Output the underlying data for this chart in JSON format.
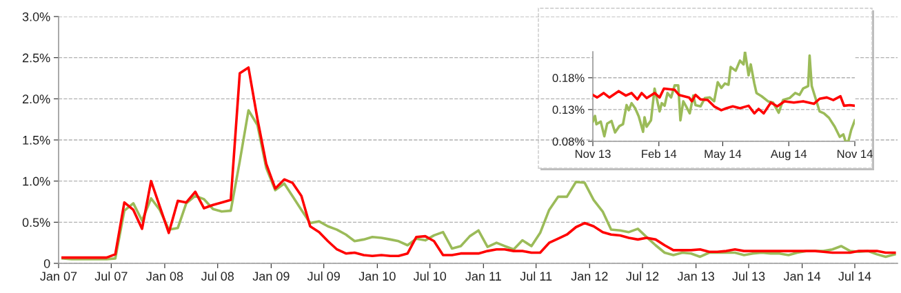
{
  "chart_data": [
    {
      "type": "line",
      "x": [
        "2007-01-15",
        "2007-02-15",
        "2007-03-15",
        "2007-04-15",
        "2007-05-15",
        "2007-06-15",
        "2007-07-15",
        "2007-08-15",
        "2007-09-15",
        "2007-10-15",
        "2007-11-15",
        "2007-12-15",
        "2008-01-15",
        "2008-02-15",
        "2008-03-15",
        "2008-04-15",
        "2008-05-15",
        "2008-06-15",
        "2008-07-15",
        "2008-08-15",
        "2008-09-15",
        "2008-10-15",
        "2008-11-15",
        "2008-12-15",
        "2009-01-15",
        "2009-02-15",
        "2009-03-15",
        "2009-04-15",
        "2009-05-15",
        "2009-06-15",
        "2009-07-15",
        "2009-08-15",
        "2009-09-15",
        "2009-10-15",
        "2009-11-15",
        "2009-12-15",
        "2010-01-15",
        "2010-02-15",
        "2010-03-15",
        "2010-04-15",
        "2010-05-15",
        "2010-06-15",
        "2010-07-15",
        "2010-08-15",
        "2010-09-15",
        "2010-10-15",
        "2010-11-15",
        "2010-12-15",
        "2011-01-15",
        "2011-02-15",
        "2011-03-15",
        "2011-04-15",
        "2011-05-15",
        "2011-06-15",
        "2011-07-15",
        "2011-08-15",
        "2011-09-15",
        "2011-10-15",
        "2011-11-15",
        "2011-12-15",
        "2012-01-15",
        "2012-02-15",
        "2012-03-15",
        "2012-04-15",
        "2012-05-15",
        "2012-06-15",
        "2012-07-15",
        "2012-08-15",
        "2012-09-15",
        "2012-10-15",
        "2012-11-15",
        "2012-12-15",
        "2013-01-15",
        "2013-02-15",
        "2013-03-15",
        "2013-04-15",
        "2013-05-15",
        "2013-06-15",
        "2013-07-15",
        "2013-08-15",
        "2013-09-15",
        "2013-10-15",
        "2013-11-15",
        "2013-12-15",
        "2014-01-15",
        "2014-02-15",
        "2014-03-15",
        "2014-04-15",
        "2014-05-15",
        "2014-06-15",
        "2014-07-15",
        "2014-08-15",
        "2014-09-15",
        "2014-10-15",
        "2014-11-15"
      ],
      "series": [
        {
          "color": "#9bbb59",
          "values": [
            0.06,
            0.05,
            0.05,
            0.05,
            0.05,
            0.05,
            0.06,
            0.64,
            0.73,
            0.52,
            0.79,
            0.65,
            0.41,
            0.43,
            0.73,
            0.82,
            0.78,
            0.66,
            0.63,
            0.64,
            1.24,
            1.86,
            1.68,
            1.16,
            0.89,
            0.97,
            0.82,
            0.65,
            0.49,
            0.51,
            0.45,
            0.41,
            0.35,
            0.27,
            0.29,
            0.32,
            0.31,
            0.29,
            0.27,
            0.22,
            0.3,
            0.28,
            0.34,
            0.38,
            0.18,
            0.21,
            0.33,
            0.4,
            0.2,
            0.25,
            0.21,
            0.17,
            0.28,
            0.21,
            0.37,
            0.65,
            0.81,
            0.81,
            0.99,
            0.98,
            0.77,
            0.63,
            0.41,
            0.4,
            0.38,
            0.42,
            0.32,
            0.22,
            0.13,
            0.1,
            0.13,
            0.12,
            0.08,
            0.13,
            0.13,
            0.13,
            0.13,
            0.1,
            0.12,
            0.13,
            0.12,
            0.12,
            0.1,
            0.13,
            0.15,
            0.15,
            0.15,
            0.17,
            0.21,
            0.15,
            0.14,
            0.15,
            0.11,
            0.08,
            0.11
          ]
        },
        {
          "color": "#ff0000",
          "values": [
            0.07,
            0.07,
            0.07,
            0.07,
            0.07,
            0.07,
            0.11,
            0.74,
            0.65,
            0.42,
            1.0,
            0.69,
            0.37,
            0.76,
            0.74,
            0.87,
            0.67,
            0.71,
            0.74,
            0.77,
            2.31,
            2.38,
            1.75,
            1.21,
            0.91,
            1.02,
            0.98,
            0.82,
            0.45,
            0.38,
            0.27,
            0.17,
            0.12,
            0.13,
            0.1,
            0.09,
            0.1,
            0.09,
            0.09,
            0.12,
            0.32,
            0.33,
            0.27,
            0.1,
            0.1,
            0.12,
            0.12,
            0.12,
            0.15,
            0.17,
            0.17,
            0.15,
            0.15,
            0.13,
            0.13,
            0.25,
            0.3,
            0.35,
            0.44,
            0.49,
            0.45,
            0.38,
            0.35,
            0.34,
            0.31,
            0.29,
            0.31,
            0.29,
            0.22,
            0.16,
            0.16,
            0.16,
            0.17,
            0.14,
            0.14,
            0.15,
            0.17,
            0.15,
            0.15,
            0.15,
            0.15,
            0.15,
            0.15,
            0.15,
            0.15,
            0.15,
            0.14,
            0.13,
            0.13,
            0.13,
            0.15,
            0.15,
            0.15,
            0.13,
            0.13
          ]
        }
      ],
      "xlim": [
        "2007-01-01",
        "2014-11-25"
      ],
      "xticks": [
        {
          "value": "2007-01-01",
          "label": "Jan 07"
        },
        {
          "value": "2007-07-01",
          "label": "Jul 07"
        },
        {
          "value": "2008-01-01",
          "label": "Jan 08"
        },
        {
          "value": "2008-07-01",
          "label": "Jul 08"
        },
        {
          "value": "2009-01-01",
          "label": "Jan 09"
        },
        {
          "value": "2009-07-01",
          "label": "Jul 09"
        },
        {
          "value": "2010-01-01",
          "label": "Jan 10"
        },
        {
          "value": "2010-07-01",
          "label": "Jul 10"
        },
        {
          "value": "2011-01-01",
          "label": "Jan 11"
        },
        {
          "value": "2011-07-01",
          "label": "Jul 11"
        },
        {
          "value": "2012-01-01",
          "label": "Jan 12"
        },
        {
          "value": "2012-07-01",
          "label": "Jul 12"
        },
        {
          "value": "2013-01-01",
          "label": "Jan 13"
        },
        {
          "value": "2013-07-01",
          "label": "Jul 13"
        },
        {
          "value": "2014-01-01",
          "label": "Jan 14"
        },
        {
          "value": "2014-07-01",
          "label": "Jul 14"
        }
      ],
      "ylim": [
        0,
        3.0
      ],
      "yticks": [
        0,
        {
          "value": 0.5,
          "label": "0.5%"
        },
        {
          "value": 1.0,
          "label": "1.0%"
        },
        {
          "value": 1.5,
          "label": "1.5%"
        },
        {
          "value": 2.0,
          "label": "2.0%"
        },
        {
          "value": 2.5,
          "label": "2.5%"
        },
        {
          "value": 3.0,
          "label": "3.0%"
        }
      ],
      "grid": "y"
    },
    {
      "type": "line",
      "series": [
        {
          "color": "#9bbb59",
          "x": [
            "2013-11-01",
            "2013-11-04",
            "2013-11-06",
            "2013-11-12",
            "2013-11-17",
            "2013-11-21",
            "2013-11-27",
            "2013-12-02",
            "2013-12-08",
            "2013-12-13",
            "2013-12-18",
            "2013-12-21",
            "2013-12-25",
            "2013-12-30",
            "2014-01-04",
            "2014-01-10",
            "2014-01-12",
            "2014-01-15",
            "2014-01-21",
            "2014-01-26",
            "2014-02-02",
            "2014-02-05",
            "2014-02-09",
            "2014-02-13",
            "2014-02-18",
            "2014-02-23",
            "2014-02-28",
            "2014-03-03",
            "2014-03-07",
            "2014-03-11",
            "2014-03-16",
            "2014-03-21",
            "2014-03-24",
            "2014-03-31",
            "2014-04-06",
            "2014-04-13",
            "2014-04-19",
            "2014-04-24",
            "2014-04-29",
            "2014-05-04",
            "2014-05-09",
            "2014-05-12",
            "2014-05-19",
            "2014-05-25",
            "2014-05-30",
            "2014-06-01",
            "2014-06-06",
            "2014-06-09",
            "2014-06-14",
            "2014-06-17",
            "2014-06-24",
            "2014-07-03",
            "2014-07-10",
            "2014-07-18",
            "2014-07-24",
            "2014-08-02",
            "2014-08-10",
            "2014-08-16",
            "2014-08-21",
            "2014-08-28",
            "2014-08-30",
            "2014-09-02",
            "2014-09-08",
            "2014-09-13",
            "2014-09-19",
            "2014-09-26",
            "2014-10-04",
            "2014-10-11",
            "2014-10-16",
            "2014-10-19",
            "2014-10-23",
            "2014-10-27",
            "2014-11-01"
          ],
          "values": [
            0.111,
            0.12,
            0.107,
            0.111,
            0.088,
            0.108,
            0.112,
            0.094,
            0.104,
            0.107,
            0.137,
            0.129,
            0.14,
            0.132,
            0.119,
            0.095,
            0.118,
            0.103,
            0.113,
            0.163,
            0.127,
            0.14,
            0.136,
            0.156,
            0.149,
            0.168,
            0.168,
            0.113,
            0.143,
            0.135,
            0.124,
            0.152,
            0.137,
            0.135,
            0.148,
            0.149,
            0.143,
            0.173,
            0.164,
            0.171,
            0.169,
            0.197,
            0.191,
            0.207,
            0.201,
            0.221,
            0.184,
            0.201,
            0.171,
            0.156,
            0.151,
            0.143,
            0.141,
            0.125,
            0.145,
            0.148,
            0.156,
            0.153,
            0.163,
            0.167,
            0.215,
            0.167,
            0.145,
            0.127,
            0.124,
            0.117,
            0.103,
            0.087,
            0.091,
            0.08,
            0.08,
            0.098,
            0.113
          ]
        },
        {
          "color": "#ff0000",
          "x": [
            "2013-11-01",
            "2013-11-07",
            "2013-11-16",
            "2013-11-24",
            "2013-12-07",
            "2013-12-17",
            "2013-12-25",
            "2014-01-02",
            "2014-01-08",
            "2014-01-15",
            "2014-01-26",
            "2014-02-02",
            "2014-02-08",
            "2014-02-23",
            "2014-03-01",
            "2014-03-15",
            "2014-03-19",
            "2014-03-24",
            "2014-03-31",
            "2014-04-10",
            "2014-04-19",
            "2014-04-29",
            "2014-05-06",
            "2014-05-15",
            "2014-05-25",
            "2014-06-06",
            "2014-06-14",
            "2014-06-20",
            "2014-06-27",
            "2014-07-07",
            "2014-07-16",
            "2014-07-26",
            "2014-08-08",
            "2014-08-21",
            "2014-09-05",
            "2014-09-13",
            "2014-09-23",
            "2014-10-02",
            "2014-10-12",
            "2014-10-17",
            "2014-10-25",
            "2014-11-01"
          ],
          "values": [
            0.153,
            0.149,
            0.156,
            0.149,
            0.159,
            0.152,
            0.156,
            0.146,
            0.156,
            0.148,
            0.156,
            0.149,
            0.163,
            0.161,
            0.153,
            0.149,
            0.143,
            0.153,
            0.146,
            0.145,
            0.135,
            0.129,
            0.132,
            0.135,
            0.132,
            0.136,
            0.124,
            0.131,
            0.124,
            0.141,
            0.135,
            0.143,
            0.141,
            0.143,
            0.139,
            0.147,
            0.149,
            0.145,
            0.151,
            0.136,
            0.137,
            0.136
          ]
        }
      ],
      "xlim": [
        "2013-11-01",
        "2014-11-01"
      ],
      "xticks": [
        {
          "value": "2013-11-01",
          "label": "Nov 13"
        },
        {
          "value": "2014-02-01",
          "label": "Feb 14"
        },
        {
          "value": "2014-05-01",
          "label": "May 14"
        },
        {
          "value": "2014-08-01",
          "label": "Aug 14"
        },
        {
          "value": "2014-11-01",
          "label": "Nov 14"
        }
      ],
      "ylim": [
        0.08,
        0.221
      ],
      "yticks": [
        {
          "value": 0.08,
          "label": "0.08%"
        },
        {
          "value": 0.13,
          "label": "0.13%"
        },
        {
          "value": 0.18,
          "label": "0.18%"
        }
      ],
      "grid": "y"
    }
  ]
}
